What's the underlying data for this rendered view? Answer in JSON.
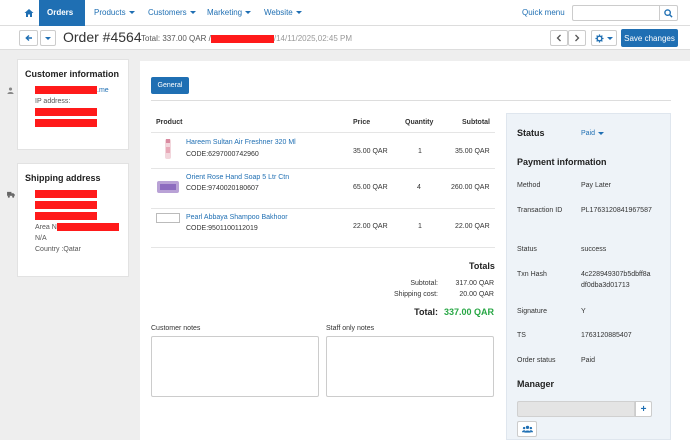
{
  "nav": {
    "items": [
      {
        "label": "Orders",
        "active": true
      },
      {
        "label": "Products",
        "active": false
      },
      {
        "label": "Customers",
        "active": false
      },
      {
        "label": "Marketing",
        "active": false
      },
      {
        "label": "Website",
        "active": false
      }
    ],
    "quick_menu": "Quick menu",
    "search_value": ""
  },
  "header": {
    "title": "Order #4564",
    "total_prefix": "Total:",
    "total_value": "337.00 QAR",
    "separator": "/",
    "date": "/14/11/2025,02:45 PM",
    "save_label": "Save changes"
  },
  "customer": {
    "heading": "Customer information",
    "email_suffix": ".me",
    "ip_label": "IP address:"
  },
  "shipping": {
    "heading": "Shipping address",
    "area_label": "Area N",
    "line_na": "N/A",
    "country": "Country :Qatar"
  },
  "tabs": {
    "general": "General"
  },
  "products_table": {
    "headers": {
      "product": "Product",
      "price": "Price",
      "quantity": "Quantity",
      "subtotal": "Subtotal"
    },
    "rows": [
      {
        "name": "Hareem Sultan Air Freshner 320 Ml",
        "code": "CODE:6297000742960",
        "price": "35.00 QAR",
        "quantity": "1",
        "subtotal": "35.00 QAR"
      },
      {
        "name": "Orient Rose Hand Soap 5 Ltr Ctn",
        "code": "CODE:9740020180607",
        "price": "65.00 QAR",
        "quantity": "4",
        "subtotal": "260.00 QAR"
      },
      {
        "name": "Pearl Abbaya Shampoo Bakhoor",
        "code": "CODE:9501100112019",
        "price": "22.00 QAR",
        "quantity": "1",
        "subtotal": "22.00 QAR"
      }
    ]
  },
  "totals": {
    "heading": "Totals",
    "subtotal_label": "Subtotal:",
    "subtotal_value": "317.00 QAR",
    "shipping_label": "Shipping cost:",
    "shipping_value": "20.00 QAR",
    "total_label": "Total:",
    "total_value": "337.00 QAR"
  },
  "notes": {
    "customer_label": "Customer notes",
    "staff_label": "Staff only notes",
    "customer_value": "",
    "staff_value": ""
  },
  "status_panel": {
    "status_heading": "Status",
    "status_value": "Paid",
    "payment_heading": "Payment information",
    "fields": [
      {
        "label": "Method",
        "value": "Pay Later"
      },
      {
        "label": "Transaction ID",
        "value": "PL1763120841967587"
      },
      {
        "label": "Status",
        "value": "success"
      },
      {
        "label": "Txn Hash",
        "value": "4c228949307b5dbff8adf0dba3d01713"
      },
      {
        "label": "Signature",
        "value": "Y"
      },
      {
        "label": "TS",
        "value": "1763120885407"
      },
      {
        "label": "Order status",
        "value": "Paid"
      }
    ],
    "txn_hash_line1": "4c228949307b5dbff8a",
    "txn_hash_line2": "df0dba3d01713",
    "manager_heading": "Manager"
  },
  "colors": {
    "accent": "#1f6fb3",
    "total_green": "#28a745",
    "redaction": "#ff1a1a"
  },
  "icons": [
    "home-icon",
    "search-icon",
    "arrow-left-icon",
    "chevron-down-icon",
    "chevron-left-icon",
    "chevron-right-icon",
    "gear-icon",
    "user-icon",
    "truck-icon",
    "plus-icon",
    "users-icon"
  ]
}
